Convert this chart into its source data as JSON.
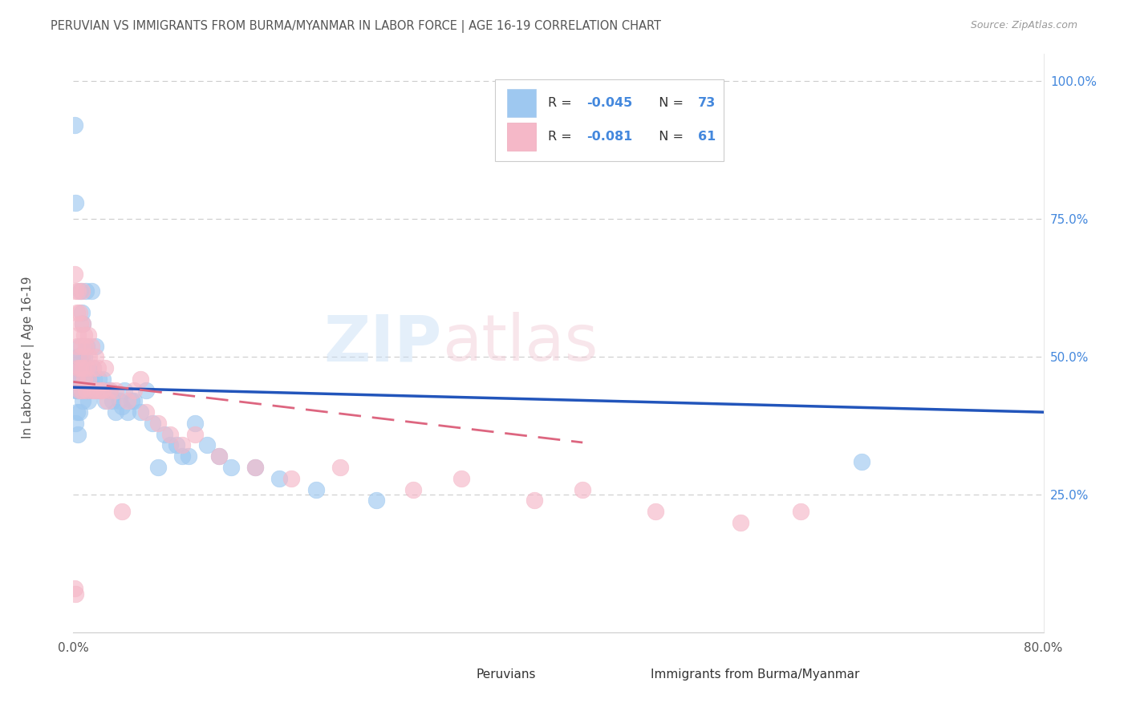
{
  "title": "PERUVIAN VS IMMIGRANTS FROM BURMA/MYANMAR IN LABOR FORCE | AGE 16-19 CORRELATION CHART",
  "source": "Source: ZipAtlas.com",
  "ylabel": "In Labor Force | Age 16-19",
  "yaxis_labels": [
    "25.0%",
    "50.0%",
    "75.0%",
    "100.0%"
  ],
  "yaxis_values": [
    0.25,
    0.5,
    0.75,
    1.0
  ],
  "r_peruvian": -0.045,
  "n_peruvian": 73,
  "r_burma": -0.081,
  "n_burma": 61,
  "blue_color": "#9EC8F0",
  "pink_color": "#F5B8C8",
  "blue_line_color": "#2255BB",
  "pink_line_color": "#DD6680",
  "title_color": "#555555",
  "right_axis_color": "#4488DD",
  "background_color": "#FFFFFF",
  "xlim": [
    0.0,
    0.8
  ],
  "ylim": [
    0.0,
    1.05
  ],
  "blue_trend_x0": 0.0,
  "blue_trend_y0": 0.445,
  "blue_trend_x1": 0.8,
  "blue_trend_y1": 0.4,
  "pink_trend_x0": 0.0,
  "pink_trend_y0": 0.455,
  "pink_trend_x1": 0.42,
  "pink_trend_y1": 0.345,
  "peruvian_x": [
    0.001,
    0.001,
    0.002,
    0.002,
    0.002,
    0.003,
    0.003,
    0.003,
    0.003,
    0.004,
    0.004,
    0.004,
    0.004,
    0.005,
    0.005,
    0.005,
    0.005,
    0.006,
    0.006,
    0.006,
    0.007,
    0.007,
    0.007,
    0.008,
    0.008,
    0.008,
    0.009,
    0.009,
    0.01,
    0.01,
    0.011,
    0.011,
    0.012,
    0.012,
    0.013,
    0.014,
    0.015,
    0.016,
    0.017,
    0.018,
    0.02,
    0.021,
    0.022,
    0.024,
    0.026,
    0.028,
    0.03,
    0.032,
    0.035,
    0.038,
    0.04,
    0.042,
    0.045,
    0.048,
    0.05,
    0.055,
    0.06,
    0.065,
    0.07,
    0.075,
    0.08,
    0.085,
    0.09,
    0.095,
    0.1,
    0.11,
    0.12,
    0.13,
    0.15,
    0.17,
    0.2,
    0.25,
    0.65
  ],
  "peruvian_y": [
    0.92,
    0.46,
    0.78,
    0.44,
    0.38,
    0.48,
    0.46,
    0.44,
    0.4,
    0.5,
    0.46,
    0.44,
    0.36,
    0.52,
    0.48,
    0.44,
    0.4,
    0.62,
    0.5,
    0.44,
    0.58,
    0.5,
    0.44,
    0.56,
    0.48,
    0.42,
    0.5,
    0.44,
    0.62,
    0.46,
    0.52,
    0.44,
    0.48,
    0.42,
    0.44,
    0.46,
    0.62,
    0.48,
    0.46,
    0.52,
    0.44,
    0.46,
    0.44,
    0.46,
    0.42,
    0.44,
    0.44,
    0.42,
    0.4,
    0.42,
    0.41,
    0.44,
    0.4,
    0.42,
    0.42,
    0.4,
    0.44,
    0.38,
    0.3,
    0.36,
    0.34,
    0.34,
    0.32,
    0.32,
    0.38,
    0.34,
    0.32,
    0.3,
    0.3,
    0.28,
    0.26,
    0.24,
    0.31
  ],
  "burma_x": [
    0.001,
    0.001,
    0.002,
    0.002,
    0.003,
    0.003,
    0.003,
    0.004,
    0.004,
    0.004,
    0.005,
    0.005,
    0.005,
    0.006,
    0.006,
    0.007,
    0.007,
    0.007,
    0.008,
    0.008,
    0.009,
    0.009,
    0.01,
    0.01,
    0.011,
    0.012,
    0.012,
    0.013,
    0.014,
    0.015,
    0.016,
    0.017,
    0.018,
    0.019,
    0.02,
    0.022,
    0.024,
    0.026,
    0.028,
    0.03,
    0.035,
    0.04,
    0.045,
    0.05,
    0.055,
    0.06,
    0.07,
    0.08,
    0.09,
    0.1,
    0.12,
    0.15,
    0.18,
    0.22,
    0.28,
    0.32,
    0.38,
    0.42,
    0.48,
    0.55,
    0.6
  ],
  "burma_y": [
    0.65,
    0.08,
    0.62,
    0.07,
    0.58,
    0.52,
    0.46,
    0.62,
    0.54,
    0.48,
    0.58,
    0.5,
    0.44,
    0.56,
    0.48,
    0.62,
    0.52,
    0.44,
    0.56,
    0.48,
    0.54,
    0.46,
    0.52,
    0.44,
    0.48,
    0.54,
    0.46,
    0.5,
    0.44,
    0.52,
    0.48,
    0.44,
    0.5,
    0.44,
    0.48,
    0.44,
    0.44,
    0.48,
    0.42,
    0.44,
    0.44,
    0.22,
    0.42,
    0.44,
    0.46,
    0.4,
    0.38,
    0.36,
    0.34,
    0.36,
    0.32,
    0.3,
    0.28,
    0.3,
    0.26,
    0.28,
    0.24,
    0.26,
    0.22,
    0.2,
    0.22
  ]
}
